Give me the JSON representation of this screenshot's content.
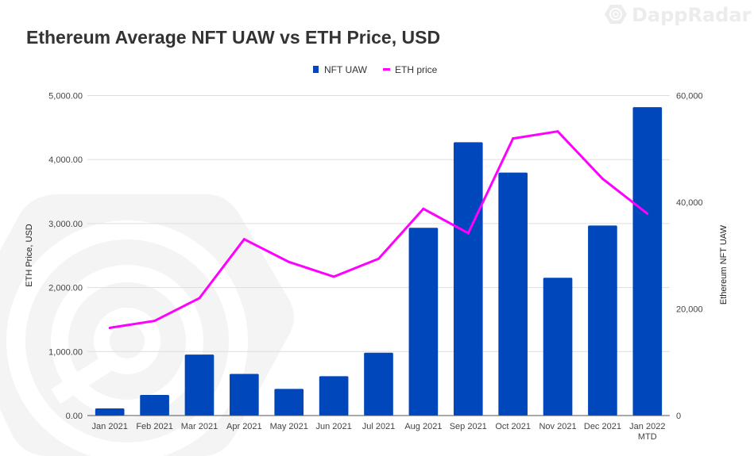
{
  "brand": {
    "name": "DappRadar",
    "icon": "dappradar-logo-icon"
  },
  "chart_data": {
    "type": "bar",
    "title": "Ethereum Average NFT UAW vs ETH Price, USD",
    "categories": [
      "Jan 2021",
      "Feb 2021",
      "Mar 2021",
      "Apr 2021",
      "May 2021",
      "Jun 2021",
      "Jul 2021",
      "Aug 2021",
      "Sep 2021",
      "Oct 2021",
      "Nov 2021",
      "Dec 2021",
      "Jan 2022\nMTD"
    ],
    "series": [
      {
        "name": "NFT UAW",
        "type": "bar",
        "axis": "right",
        "color": "#0047bb",
        "values": [
          1340,
          3860,
          11430,
          7800,
          5000,
          7370,
          11780,
          35200,
          51240,
          45550,
          25840,
          35640,
          57820
        ]
      },
      {
        "name": "ETH price",
        "type": "line",
        "axis": "left",
        "color": "#ff00ff",
        "values": [
          1370,
          1480,
          1835,
          2755,
          2400,
          2170,
          2450,
          3230,
          2850,
          4330,
          4440,
          3700,
          3155
        ]
      }
    ],
    "left_axis": {
      "label": "ETH Price, USD",
      "range": [
        0,
        5000
      ],
      "ticks": [
        0,
        1000,
        2000,
        3000,
        4000,
        5000
      ],
      "tick_labels": [
        "0.00",
        "1,000.00",
        "2,000.00",
        "3,000.00",
        "4,000.00",
        "5,000.00"
      ]
    },
    "right_axis": {
      "label": "Ethereum NFT UAW",
      "range": [
        0,
        60000
      ],
      "ticks": [
        0,
        20000,
        40000,
        60000
      ],
      "tick_labels": [
        "0",
        "20,000",
        "40,000",
        "60,000"
      ]
    },
    "xlabel": "",
    "grid": true,
    "legend": {
      "position": "top-center",
      "entries": [
        "NFT UAW",
        "ETH price"
      ]
    }
  }
}
